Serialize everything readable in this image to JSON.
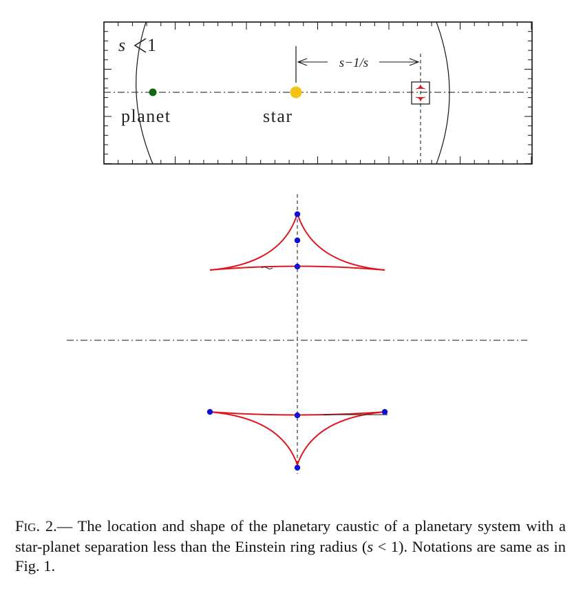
{
  "top_panel": {
    "condition_lhs": "s",
    "condition_rhs": "1",
    "separation_label": "s−1/s",
    "planet_label": "planet",
    "star_label": "star"
  },
  "colors": {
    "planet": "#116611",
    "star": "#f3c415",
    "caustic": "#e0141c",
    "image_point": "#1010d8",
    "axis": "#111111"
  },
  "caption": {
    "fig_f": "F",
    "fig_ig": "IG",
    "fig_num": ". 2.—",
    "part1": " The location and shape of the planetary caustic of a planetary system with a star-planet separation less than the Einstein ring radius (",
    "cond_s": "s",
    "cond_rest": " < 1). Notations are same as in Fig. 1."
  }
}
